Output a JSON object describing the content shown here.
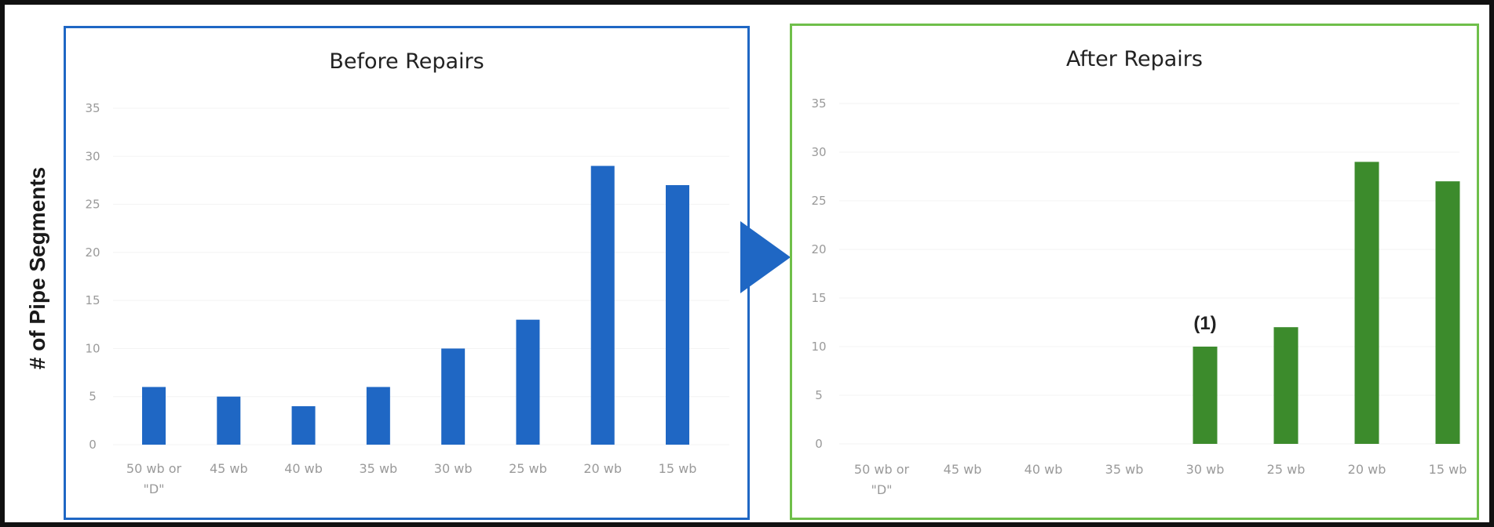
{
  "y_axis_label": "# of Pipe Segments",
  "colors": {
    "before_bar": "#1f67c4",
    "before_border": "#1f67c4",
    "after_bar": "#3c8b2c",
    "after_border": "#6fbf4a",
    "arrow": "#1f67c4",
    "frame": "#111111"
  },
  "chart_data": [
    {
      "type": "bar",
      "title": "Before Repairs",
      "categories": [
        "50 wb or \"D\"",
        "45 wb",
        "40 wb",
        "35 wb",
        "30 wb",
        "25 wb",
        "20 wb",
        "15 wb"
      ],
      "values": [
        6,
        5,
        4,
        6,
        10,
        13,
        29,
        27
      ],
      "ylim": [
        0,
        35
      ],
      "yticks": [
        0,
        5,
        10,
        15,
        20,
        25,
        30,
        35
      ],
      "ylabel": "# of Pipe Segments",
      "grid": true,
      "annotations": []
    },
    {
      "type": "bar",
      "title": "After Repairs",
      "categories": [
        "50 wb or \"D\"",
        "45 wb",
        "40 wb",
        "35 wb",
        "30 wb",
        "25 wb",
        "20 wb",
        "15 wb"
      ],
      "values": [
        0,
        0,
        0,
        0,
        10,
        12,
        29,
        27
      ],
      "ylim": [
        0,
        35
      ],
      "yticks": [
        0,
        5,
        10,
        15,
        20,
        25,
        30,
        35
      ],
      "ylabel": "# of Pipe Segments",
      "grid": true,
      "annotations": [
        {
          "category": "30 wb",
          "text": "(1)"
        }
      ]
    }
  ]
}
